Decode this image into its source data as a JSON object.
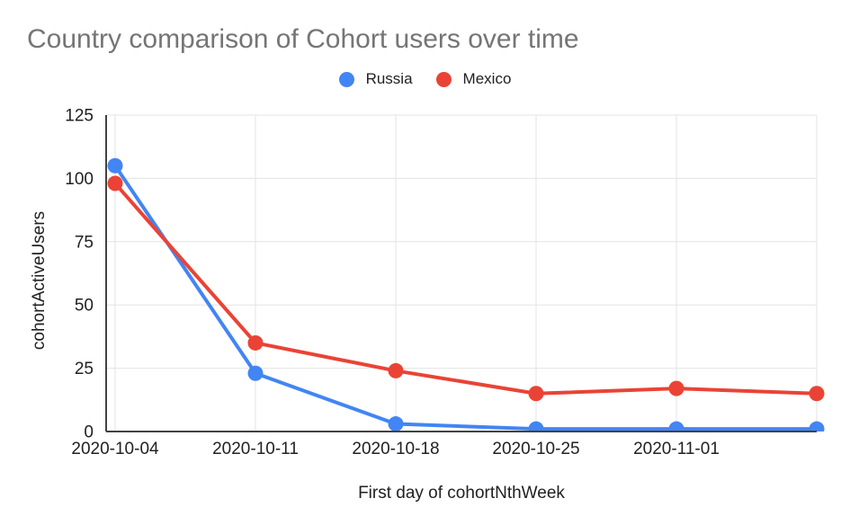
{
  "chart_data": {
    "type": "line",
    "title": "Country comparison of Cohort users over time",
    "xlabel": "First day of cohortNthWeek",
    "ylabel": "cohortActiveUsers",
    "categories": [
      "2020-10-04",
      "2020-10-11",
      "2020-10-18",
      "2020-10-25",
      "2020-11-01",
      ""
    ],
    "series": [
      {
        "name": "Russia",
        "color": "#4285F4",
        "values": [
          105,
          23,
          3,
          1,
          1,
          1
        ]
      },
      {
        "name": "Mexico",
        "color": "#EA4335",
        "values": [
          98,
          35,
          24,
          15,
          17,
          15
        ]
      }
    ],
    "y_ticks": [
      0,
      25,
      50,
      75,
      100,
      125
    ],
    "ylim": [
      0,
      125
    ],
    "grid": true,
    "legend_position": "top-center",
    "marker": "circle"
  },
  "colors": {
    "title_gray": "#757575",
    "tick_label": "#212121",
    "gridline": "#e3e3e3",
    "axis_line": "#424242",
    "background": "#ffffff"
  }
}
